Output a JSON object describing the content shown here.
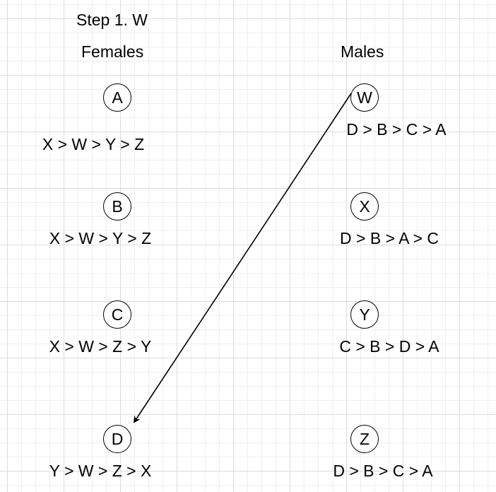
{
  "title": "Step 1. W",
  "columns": {
    "females": "Females",
    "males": "Males"
  },
  "females": [
    {
      "name": "A",
      "prefs": "X > W > Y > Z"
    },
    {
      "name": "B",
      "prefs": "X > W > Y > Z"
    },
    {
      "name": "C",
      "prefs": "X > W > Z > Y"
    },
    {
      "name": "D",
      "prefs": "Y > W > Z > X"
    }
  ],
  "males": [
    {
      "name": "W",
      "prefs": "D > B > C > A"
    },
    {
      "name": "X",
      "prefs": "D > B > A > C"
    },
    {
      "name": "Y",
      "prefs": "C > B > D > A"
    },
    {
      "name": "Z",
      "prefs": "D > B > C > A"
    }
  ],
  "proposal": {
    "from": "W",
    "to": "D"
  }
}
